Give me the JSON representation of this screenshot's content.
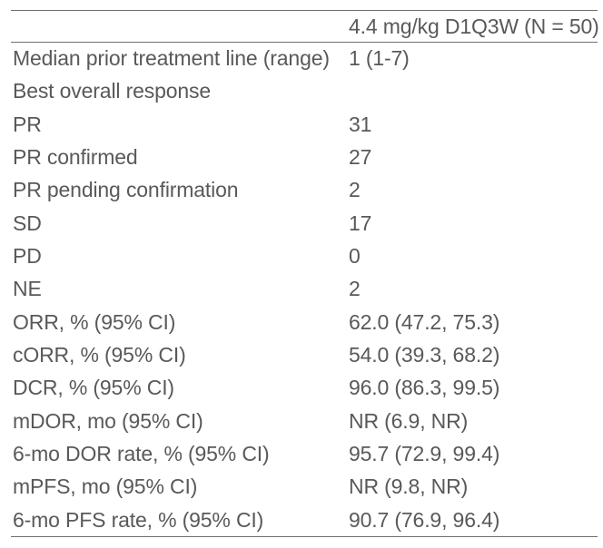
{
  "table": {
    "header": {
      "label_column": "",
      "value_column": "4.4 mg/kg D1Q3W (N = 50)"
    },
    "rows": [
      {
        "label": "Median prior treatment line (range)",
        "value": "1 (1-7)"
      },
      {
        "label": "Best overall response",
        "value": ""
      },
      {
        "label": "PR",
        "value": "31"
      },
      {
        "label": "PR confirmed",
        "value": "27"
      },
      {
        "label": "PR pending confirmation",
        "value": "2"
      },
      {
        "label": "SD",
        "value": "17"
      },
      {
        "label": "PD",
        "value": "0"
      },
      {
        "label": "NE",
        "value": "2"
      },
      {
        "label": "ORR, % (95% CI)",
        "value": "62.0 (47.2, 75.3)"
      },
      {
        "label": "cORR, % (95% CI)",
        "value": "54.0 (39.3, 68.2)"
      },
      {
        "label": "DCR, % (95% CI)",
        "value": "96.0 (86.3, 99.5)"
      },
      {
        "label": "mDOR, mo (95% CI)",
        "value": "NR (6.9, NR)"
      },
      {
        "label": "6-mo DOR rate, % (95% CI)",
        "value": "95.7 (72.9, 99.4)"
      },
      {
        "label": "mPFS, mo (95% CI)",
        "value": "NR (9.8, NR)"
      },
      {
        "label": "6-mo PFS rate, % (95% CI)",
        "value": "90.7 (76.9, 96.4)"
      }
    ],
    "colors": {
      "text": "#58595b",
      "rule": "#6e6f71",
      "background": "#ffffff"
    }
  }
}
